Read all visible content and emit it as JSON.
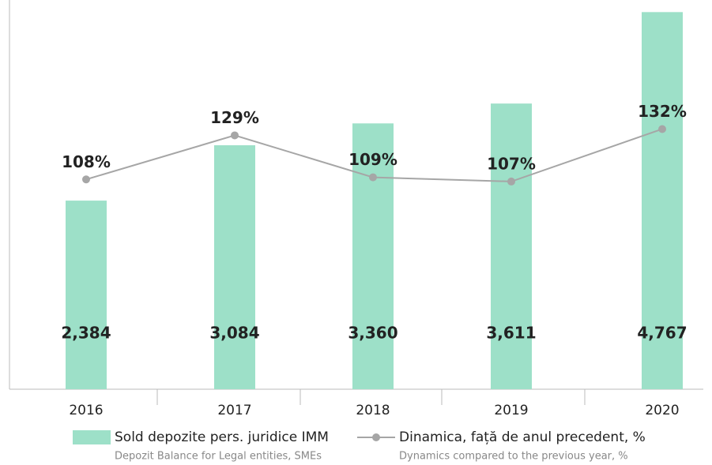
{
  "chart_data": {
    "type": "bar",
    "categories": [
      "2016",
      "2017",
      "2018",
      "2019",
      "2020"
    ],
    "series": [
      {
        "name": "Sold depozite pers. juridice IMM",
        "subtitle": "Depozit Balance for Legal entities, SMEs",
        "type": "bar",
        "color": "#9de0c8",
        "values": [
          2384,
          3084,
          3360,
          3611,
          4767
        ],
        "value_labels": [
          "2,384",
          "3,084",
          "3,360",
          "3,611",
          "4,767"
        ]
      },
      {
        "name": "Dinamica, față de anul precedent, %",
        "subtitle": "Dynamics compared to the previous year, %",
        "type": "line",
        "axis": "y2",
        "color": "#a6a6a6",
        "values": [
          108,
          129,
          109,
          107,
          132
        ],
        "value_labels": [
          "108%",
          "129%",
          "109%",
          "107%",
          "132%"
        ]
      }
    ],
    "ylim": [
      0,
      4800
    ],
    "y2lim": [
      8,
      189
    ],
    "legend": "bottom"
  }
}
